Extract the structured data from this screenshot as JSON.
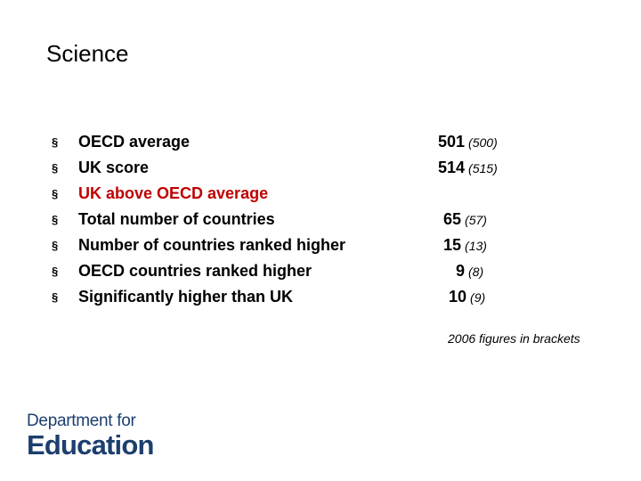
{
  "title": "Science",
  "items": [
    {
      "label": "OECD average",
      "value": "501",
      "previous": "(500)"
    },
    {
      "label": "UK score",
      "value": "514",
      "previous": "(515)"
    },
    {
      "label": "UK above OECD average",
      "value": "",
      "previous": ""
    },
    {
      "label": "Total number of countries",
      "value": "65",
      "previous": "(57)"
    },
    {
      "label": "Number of countries ranked higher",
      "value": "15",
      "previous": "(13)"
    },
    {
      "label": "OECD countries ranked higher",
      "value": "9",
      "previous": "(8)"
    },
    {
      "label": "Significantly higher than UK",
      "value": "10",
      "previous": "(9)"
    }
  ],
  "bullet": "§",
  "note": "2006 figures in brackets",
  "logo": {
    "line1": "Department for",
    "line2": "Education"
  },
  "colors": {
    "highlight": "#c00000",
    "logo": "#1c3f6e"
  }
}
